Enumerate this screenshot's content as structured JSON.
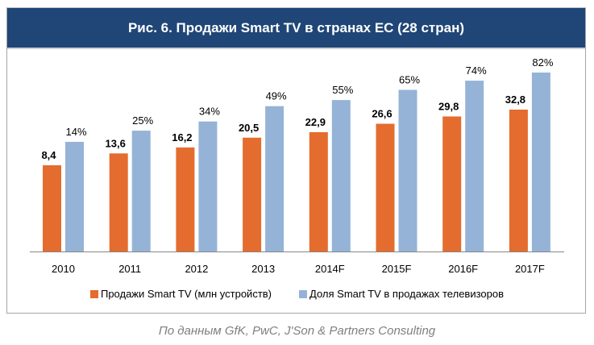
{
  "title": "Рис. 6. Продажи Smart TV в странах ЕС (28 стран)",
  "source": "По данным GfK, PwC, J'Son & Partners Consulting",
  "colors": {
    "title_bg": "#1f4677",
    "sales": "#e46c2e",
    "share": "#95b3d7",
    "axis": "#868686"
  },
  "chart_data": {
    "type": "bar",
    "title": "Рис. 6. Продажи Smart TV в странах ЕС (28 стран)",
    "categories": [
      "2010",
      "2011",
      "2012",
      "2013",
      "2014F",
      "2015F",
      "2016F",
      "2017F"
    ],
    "series": [
      {
        "name": "Продажи Smart TV (млн устройств)",
        "values": [
          8.4,
          13.6,
          16.2,
          20.5,
          22.9,
          26.6,
          29.8,
          32.8
        ],
        "labels": [
          "8,4",
          "13,6",
          "16,2",
          "20,5",
          "22,9",
          "26,6",
          "29,8",
          "32,8"
        ],
        "color": "#e46c2e",
        "label_bold": true
      },
      {
        "name": "Доля Smart TV в продажах телевизоров",
        "values": [
          14,
          25,
          34,
          49,
          55,
          65,
          74,
          82
        ],
        "labels": [
          "14%",
          "25%",
          "34%",
          "49%",
          "55%",
          "65%",
          "74%",
          "82%"
        ],
        "color": "#95b3d7",
        "label_bold": false
      }
    ],
    "xlabel": "",
    "ylabel": "",
    "grid": false,
    "legend": "bottom"
  }
}
